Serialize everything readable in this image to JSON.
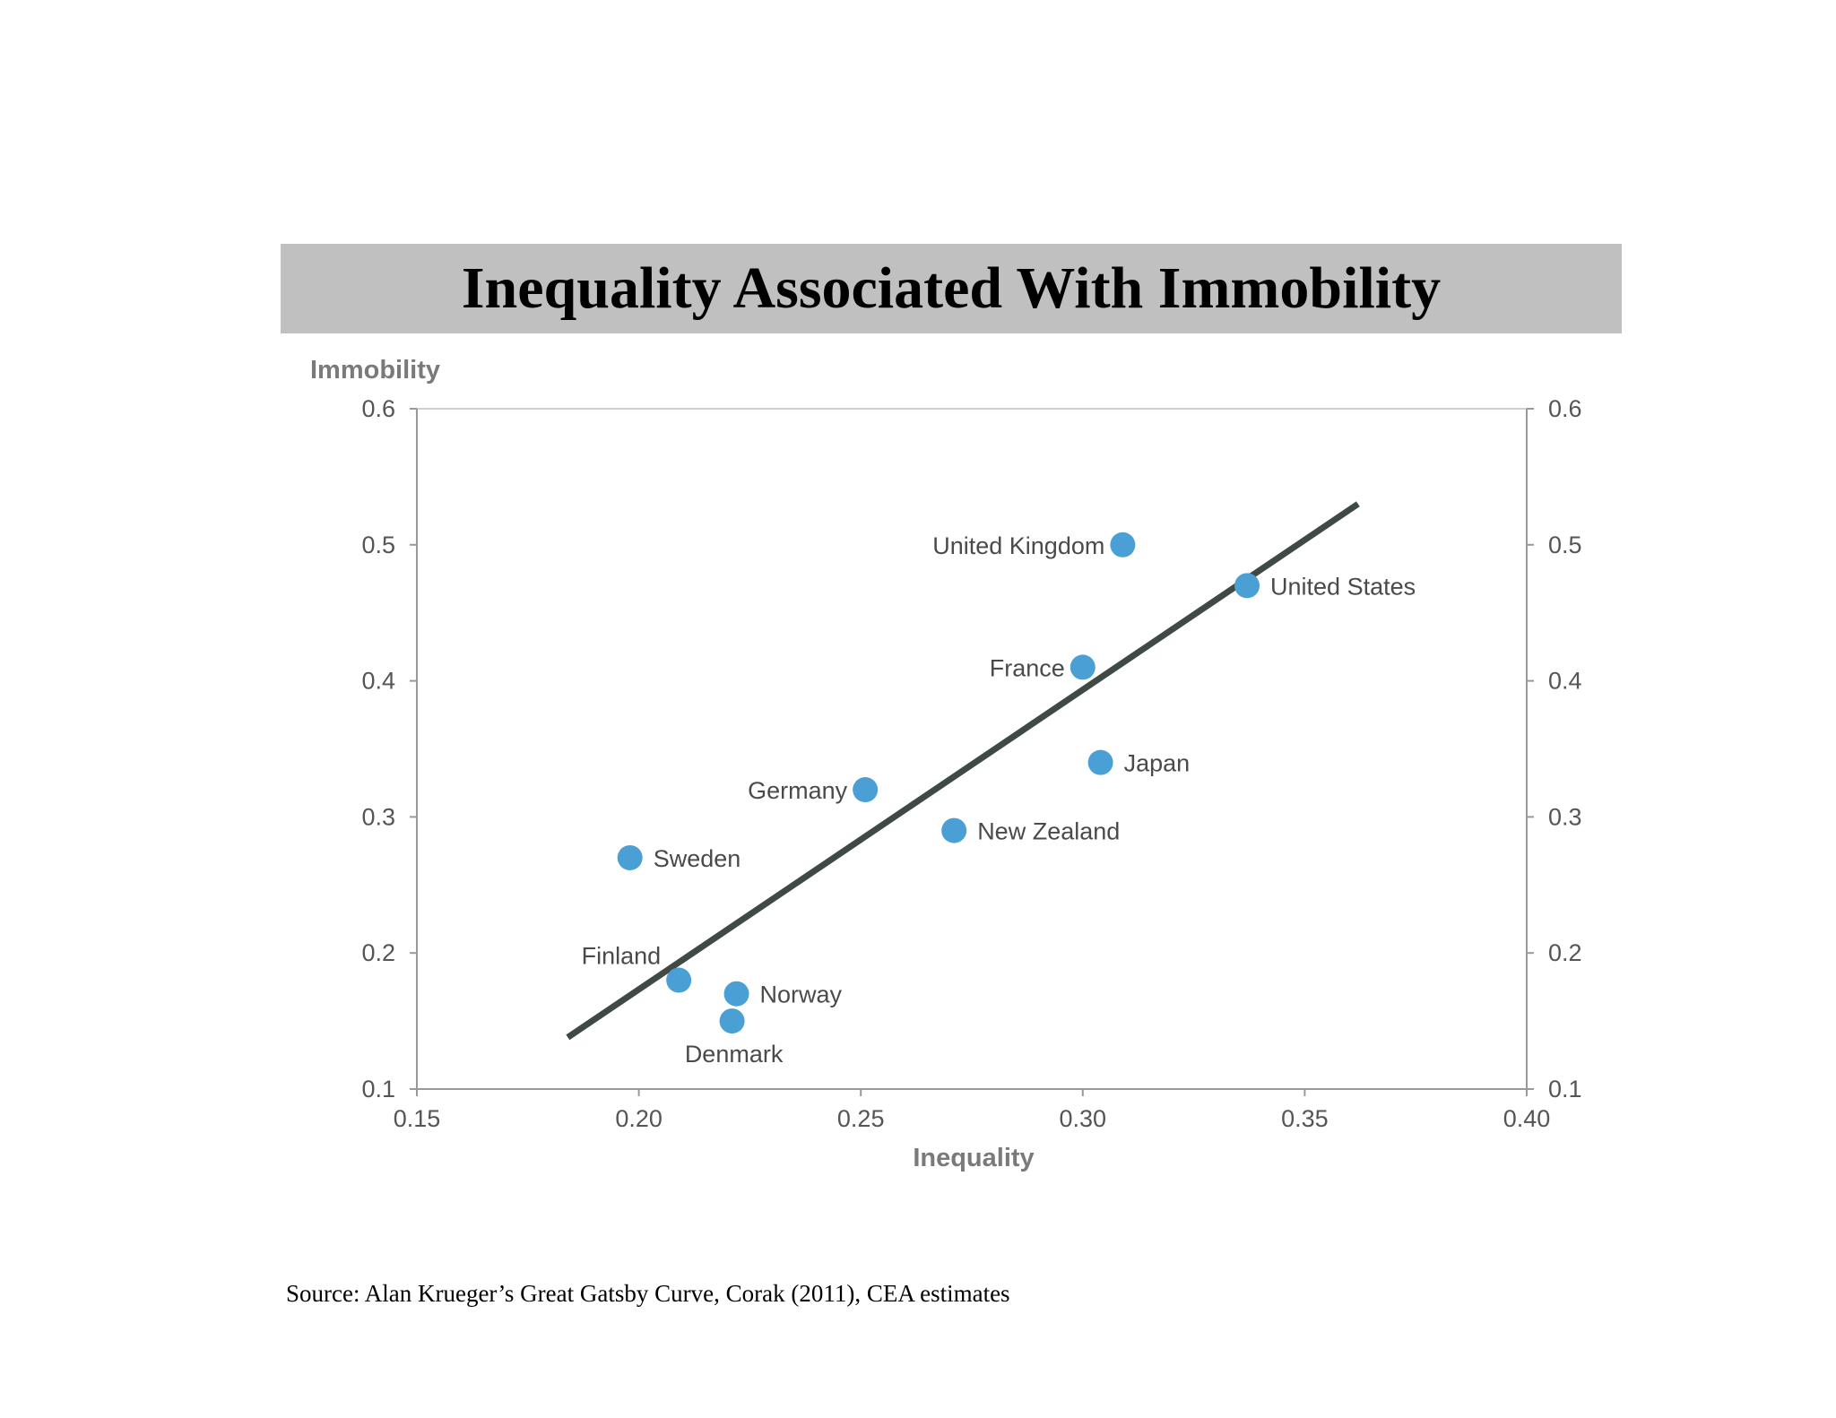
{
  "title": "Inequality Associated With Immobility",
  "source": "Source: Alan Krueger’s Great Gatsby Curve, Corak (2011), CEA estimates",
  "colors": {
    "title_bar": "#c0c0c0",
    "point": "#4a9fd4",
    "trend_line": "#3f4a45",
    "axis": "#999999",
    "tick_label": "#555555",
    "axis_title": "#7a7a7a"
  },
  "chart_data": {
    "type": "scatter",
    "title": "Inequality Associated With Immobility",
    "xlabel": "Inequality",
    "ylabel": "Immobility",
    "xlim": [
      0.15,
      0.4
    ],
    "ylim": [
      0.1,
      0.6
    ],
    "x_ticks": [
      "0.15",
      "0.20",
      "0.25",
      "0.30",
      "0.35",
      "0.40"
    ],
    "y_ticks": [
      "0.6",
      "0.5",
      "0.4",
      "0.3",
      "0.2",
      "0.1"
    ],
    "y_ticks_right": [
      "0.6",
      "0.5",
      "0.4",
      "0.3",
      "0.2",
      "0.1"
    ],
    "grid": false,
    "points": [
      {
        "label": "United Kingdom",
        "x": 0.309,
        "y": 0.5,
        "label_pos": "left"
      },
      {
        "label": "United States",
        "x": 0.337,
        "y": 0.47,
        "label_pos": "right"
      },
      {
        "label": "France",
        "x": 0.3,
        "y": 0.41,
        "label_pos": "left"
      },
      {
        "label": "Japan",
        "x": 0.304,
        "y": 0.34,
        "label_pos": "right"
      },
      {
        "label": "Germany",
        "x": 0.251,
        "y": 0.32,
        "label_pos": "left"
      },
      {
        "label": "New Zealand",
        "x": 0.271,
        "y": 0.29,
        "label_pos": "right"
      },
      {
        "label": "Sweden",
        "x": 0.198,
        "y": 0.27,
        "label_pos": "right"
      },
      {
        "label": "Finland",
        "x": 0.209,
        "y": 0.18,
        "label_pos": "above-left"
      },
      {
        "label": "Norway",
        "x": 0.222,
        "y": 0.17,
        "label_pos": "right"
      },
      {
        "label": "Denmark",
        "x": 0.221,
        "y": 0.15,
        "label_pos": "below"
      }
    ],
    "trend_line": {
      "x": [
        0.184,
        0.362
      ],
      "y": [
        0.138,
        0.53
      ]
    }
  }
}
